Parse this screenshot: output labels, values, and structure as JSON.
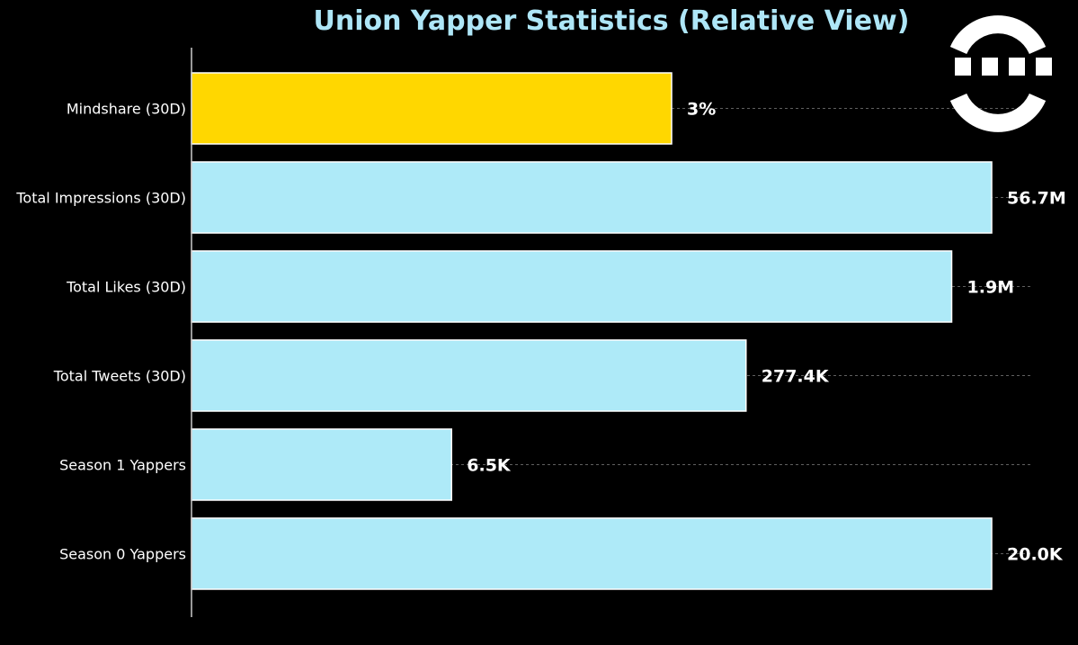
{
  "chart_data": {
    "type": "bar",
    "orientation": "horizontal",
    "title": "Union Yapper Statistics (Relative View)",
    "xlabel": "",
    "ylabel": "",
    "grid": true,
    "bars": [
      {
        "category": "Mindshare (30D)",
        "relative_value": 0.6,
        "label": "3%",
        "color": "#ffd700"
      },
      {
        "category": "Total Impressions (30D)",
        "relative_value": 1.0,
        "label": "56.7M",
        "color": "#aeeaf8"
      },
      {
        "category": "Total Likes (30D)",
        "relative_value": 0.95,
        "label": "1.9M",
        "color": "#aeeaf8"
      },
      {
        "category": "Total Tweets (30D)",
        "relative_value": 0.693,
        "label": "277.4K",
        "color": "#aeeaf8"
      },
      {
        "category": "Season 1 Yappers",
        "relative_value": 0.325,
        "label": "6.5K",
        "color": "#aeeaf8"
      },
      {
        "category": "Season 0 Yappers",
        "relative_value": 1.0,
        "label": "20.0K",
        "color": "#aeeaf8"
      }
    ]
  },
  "logo": {
    "name": "union-logo",
    "color": "#ffffff"
  }
}
